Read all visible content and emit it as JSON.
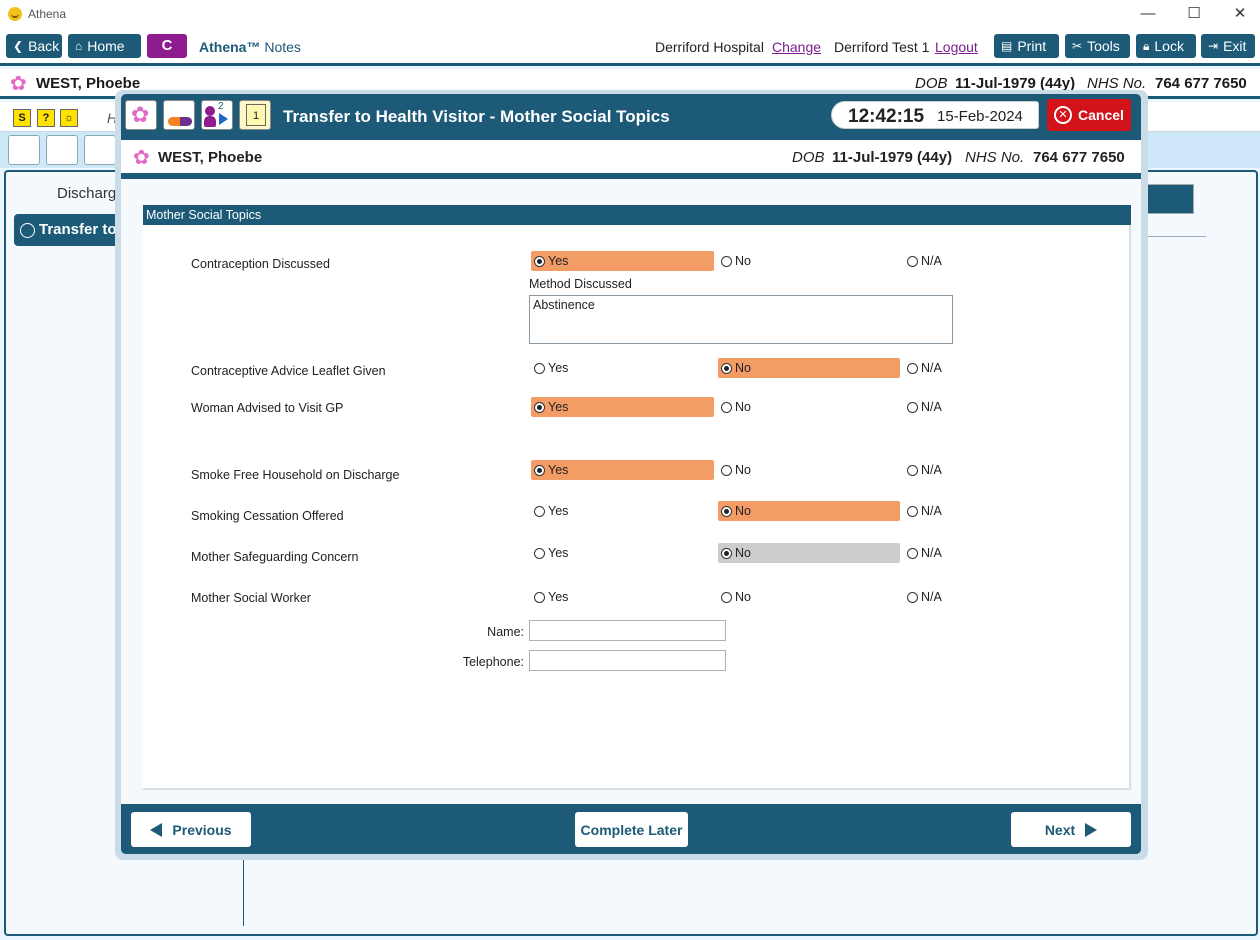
{
  "window": {
    "title": "Athena",
    "minimize": "—",
    "maximize": "☐",
    "close": "✕"
  },
  "toolbar": {
    "back": "Back",
    "home": "Home",
    "c_label": "C",
    "app_name": "Athena™",
    "app_module": "Notes",
    "hospital": "Derriford Hospital",
    "change": "Change",
    "user": "Derriford Test 1",
    "logout": "Logout",
    "print": "Print",
    "tools": "Tools",
    "lock": "Lock",
    "exit": "Exit"
  },
  "patient": {
    "name": "WEST, Phoebe",
    "dob_label": "DOB",
    "dob_value": "11-Jul-1979 (44y)",
    "nhs_label": "NHS No.",
    "nhs_value": "764 677 7650"
  },
  "background": {
    "discharge_label": "Discharg",
    "transfer_tab": "Transfer to",
    "row_letter": "H"
  },
  "modal": {
    "title": "Transfer to Health Visitor - Mother Social Topics",
    "time": "12:42:15",
    "date": "15-Feb-2024",
    "cancel": "Cancel",
    "icon_badge_2": "2",
    "icon_badge_1": "1"
  },
  "form": {
    "section_title": "Mother Social Topics",
    "option_yes": "Yes",
    "option_no": "No",
    "option_na": "N/A",
    "questions": [
      {
        "label": "Contraception Discussed",
        "selected": "yes"
      },
      {
        "label": "Contraceptive Advice Leaflet Given",
        "selected": "no"
      },
      {
        "label": "Woman Advised to Visit GP",
        "selected": "yes"
      },
      {
        "label": "Smoke Free Household on Discharge",
        "selected": "yes"
      },
      {
        "label": "Smoking Cessation Offered",
        "selected": "no"
      },
      {
        "label": "Mother Safeguarding Concern",
        "selected": "no"
      },
      {
        "label": "Mother Social Worker",
        "selected": "none"
      }
    ],
    "method_label": "Method Discussed",
    "method_value": "Abstinence",
    "name_label": "Name:",
    "name_value": "",
    "telephone_label": "Telephone:",
    "telephone_value": ""
  },
  "footer": {
    "previous": "Previous",
    "complete_later": "Complete Later",
    "next": "Next"
  },
  "colors": {
    "accent": "#1c5a78",
    "selected": "#f39c66",
    "cancel": "#d3131a",
    "c_button": "#8e1c8e"
  }
}
